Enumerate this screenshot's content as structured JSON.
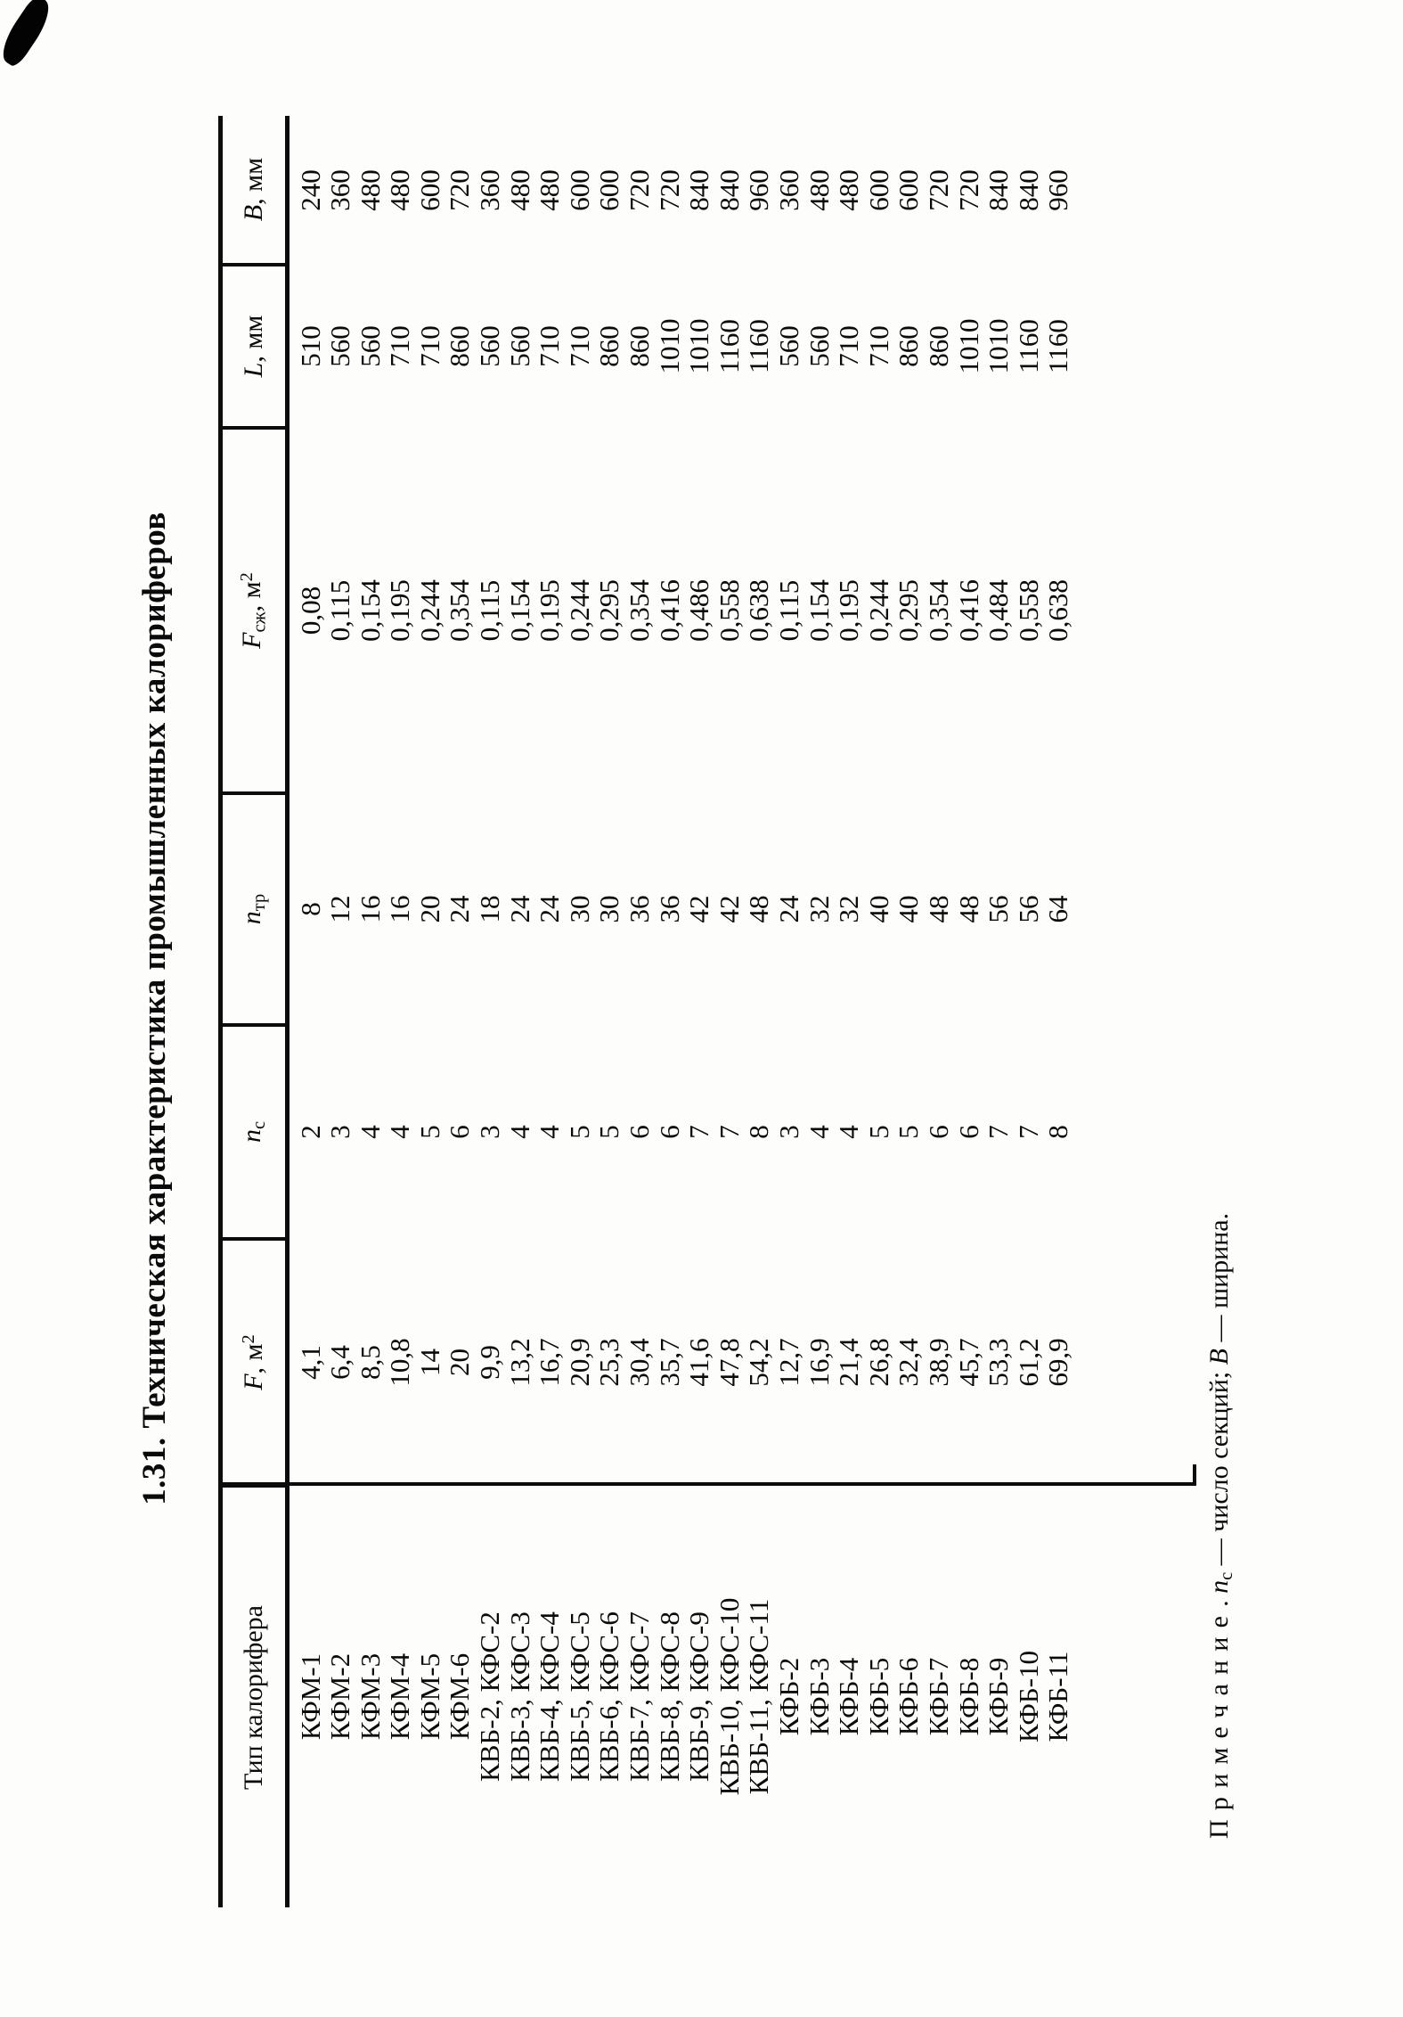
{
  "title": "1.31. Техническая характеристика промышленных калориферов",
  "table": {
    "headers": [
      {
        "main": "Тип калорифера"
      },
      {
        "main": "F",
        "unit": ", м",
        "sup": "2"
      },
      {
        "main": "n",
        "sub": "с"
      },
      {
        "main": "n",
        "sub": "тр"
      },
      {
        "main": "F",
        "sub": "сж",
        "unit": ", м",
        "sup": "2"
      },
      {
        "main": "L",
        "unit": ", мм"
      },
      {
        "main": "В",
        "unit": ", мм"
      }
    ],
    "rows": [
      [
        "КФМ-1",
        "4,1",
        "2",
        "8",
        "0,08",
        "510",
        "240"
      ],
      [
        "КФМ-2",
        "6,4",
        "3",
        "12",
        "0,115",
        "560",
        "360"
      ],
      [
        "КФМ-3",
        "8,5",
        "4",
        "16",
        "0,154",
        "560",
        "480"
      ],
      [
        "КФМ-4",
        "10,8",
        "4",
        "16",
        "0,195",
        "710",
        "480"
      ],
      [
        "КФМ-5",
        "14",
        "5",
        "20",
        "0,244",
        "710",
        "600"
      ],
      [
        "КФМ-6",
        "20",
        "6",
        "24",
        "0,354",
        "860",
        "720"
      ],
      [
        "КВБ-2, КФС-2",
        "9,9",
        "3",
        "18",
        "0,115",
        "560",
        "360"
      ],
      [
        "КВБ-3, КФС-3",
        "13,2",
        "4",
        "24",
        "0,154",
        "560",
        "480"
      ],
      [
        "КВБ-4, КФС-4",
        "16,7",
        "4",
        "24",
        "0,195",
        "710",
        "480"
      ],
      [
        "КВБ-5, КФС-5",
        "20,9",
        "5",
        "30",
        "0,244",
        "710",
        "600"
      ],
      [
        "КВБ-6, КФС-6",
        "25,3",
        "5",
        "30",
        "0,295",
        "860",
        "600"
      ],
      [
        "КВБ-7, КФС-7",
        "30,4",
        "6",
        "36",
        "0,354",
        "860",
        "720"
      ],
      [
        "КВБ-8, КФС-8",
        "35,7",
        "6",
        "36",
        "0,416",
        "1010",
        "720"
      ],
      [
        "КВБ-9, КФС-9",
        "41,6",
        "7",
        "42",
        "0,486",
        "1010",
        "840"
      ],
      [
        "КВБ-10, КФС-10",
        "47,8",
        "7",
        "42",
        "0,558",
        "1160",
        "840"
      ],
      [
        "КВБ-11, КФС-11",
        "54,2",
        "8",
        "48",
        "0,638",
        "1160",
        "960"
      ],
      [
        "КФБ-2",
        "12,7",
        "3",
        "24",
        "0,115",
        "560",
        "360"
      ],
      [
        "КФБ-3",
        "16,9",
        "4",
        "32",
        "0,154",
        "560",
        "480"
      ],
      [
        "КФБ-4",
        "21,4",
        "4",
        "32",
        "0,195",
        "710",
        "480"
      ],
      [
        "КФБ-5",
        "26,8",
        "5",
        "40",
        "0,244",
        "710",
        "600"
      ],
      [
        "КФБ-6",
        "32,4",
        "5",
        "40",
        "0,295",
        "860",
        "600"
      ],
      [
        "КФБ-7",
        "38,9",
        "6",
        "48",
        "0,354",
        "860",
        "720"
      ],
      [
        "КФБ-8",
        "45,7",
        "6",
        "48",
        "0,416",
        "1010",
        "720"
      ],
      [
        "КФБ-9",
        "53,3",
        "7",
        "56",
        "0,484",
        "1010",
        "840"
      ],
      [
        "КФБ-10",
        "61,2",
        "7",
        "56",
        "0,558",
        "1160",
        "840"
      ],
      [
        "КФБ-11",
        "69,9",
        "8",
        "64",
        "0,638",
        "1160",
        "960"
      ]
    ]
  },
  "note": {
    "label": "Примечание",
    "sep": ". ",
    "var1": "n",
    "var1_sub": "с",
    "text1": " — число секций; ",
    "var2": "В",
    "text2": " — ширина."
  }
}
